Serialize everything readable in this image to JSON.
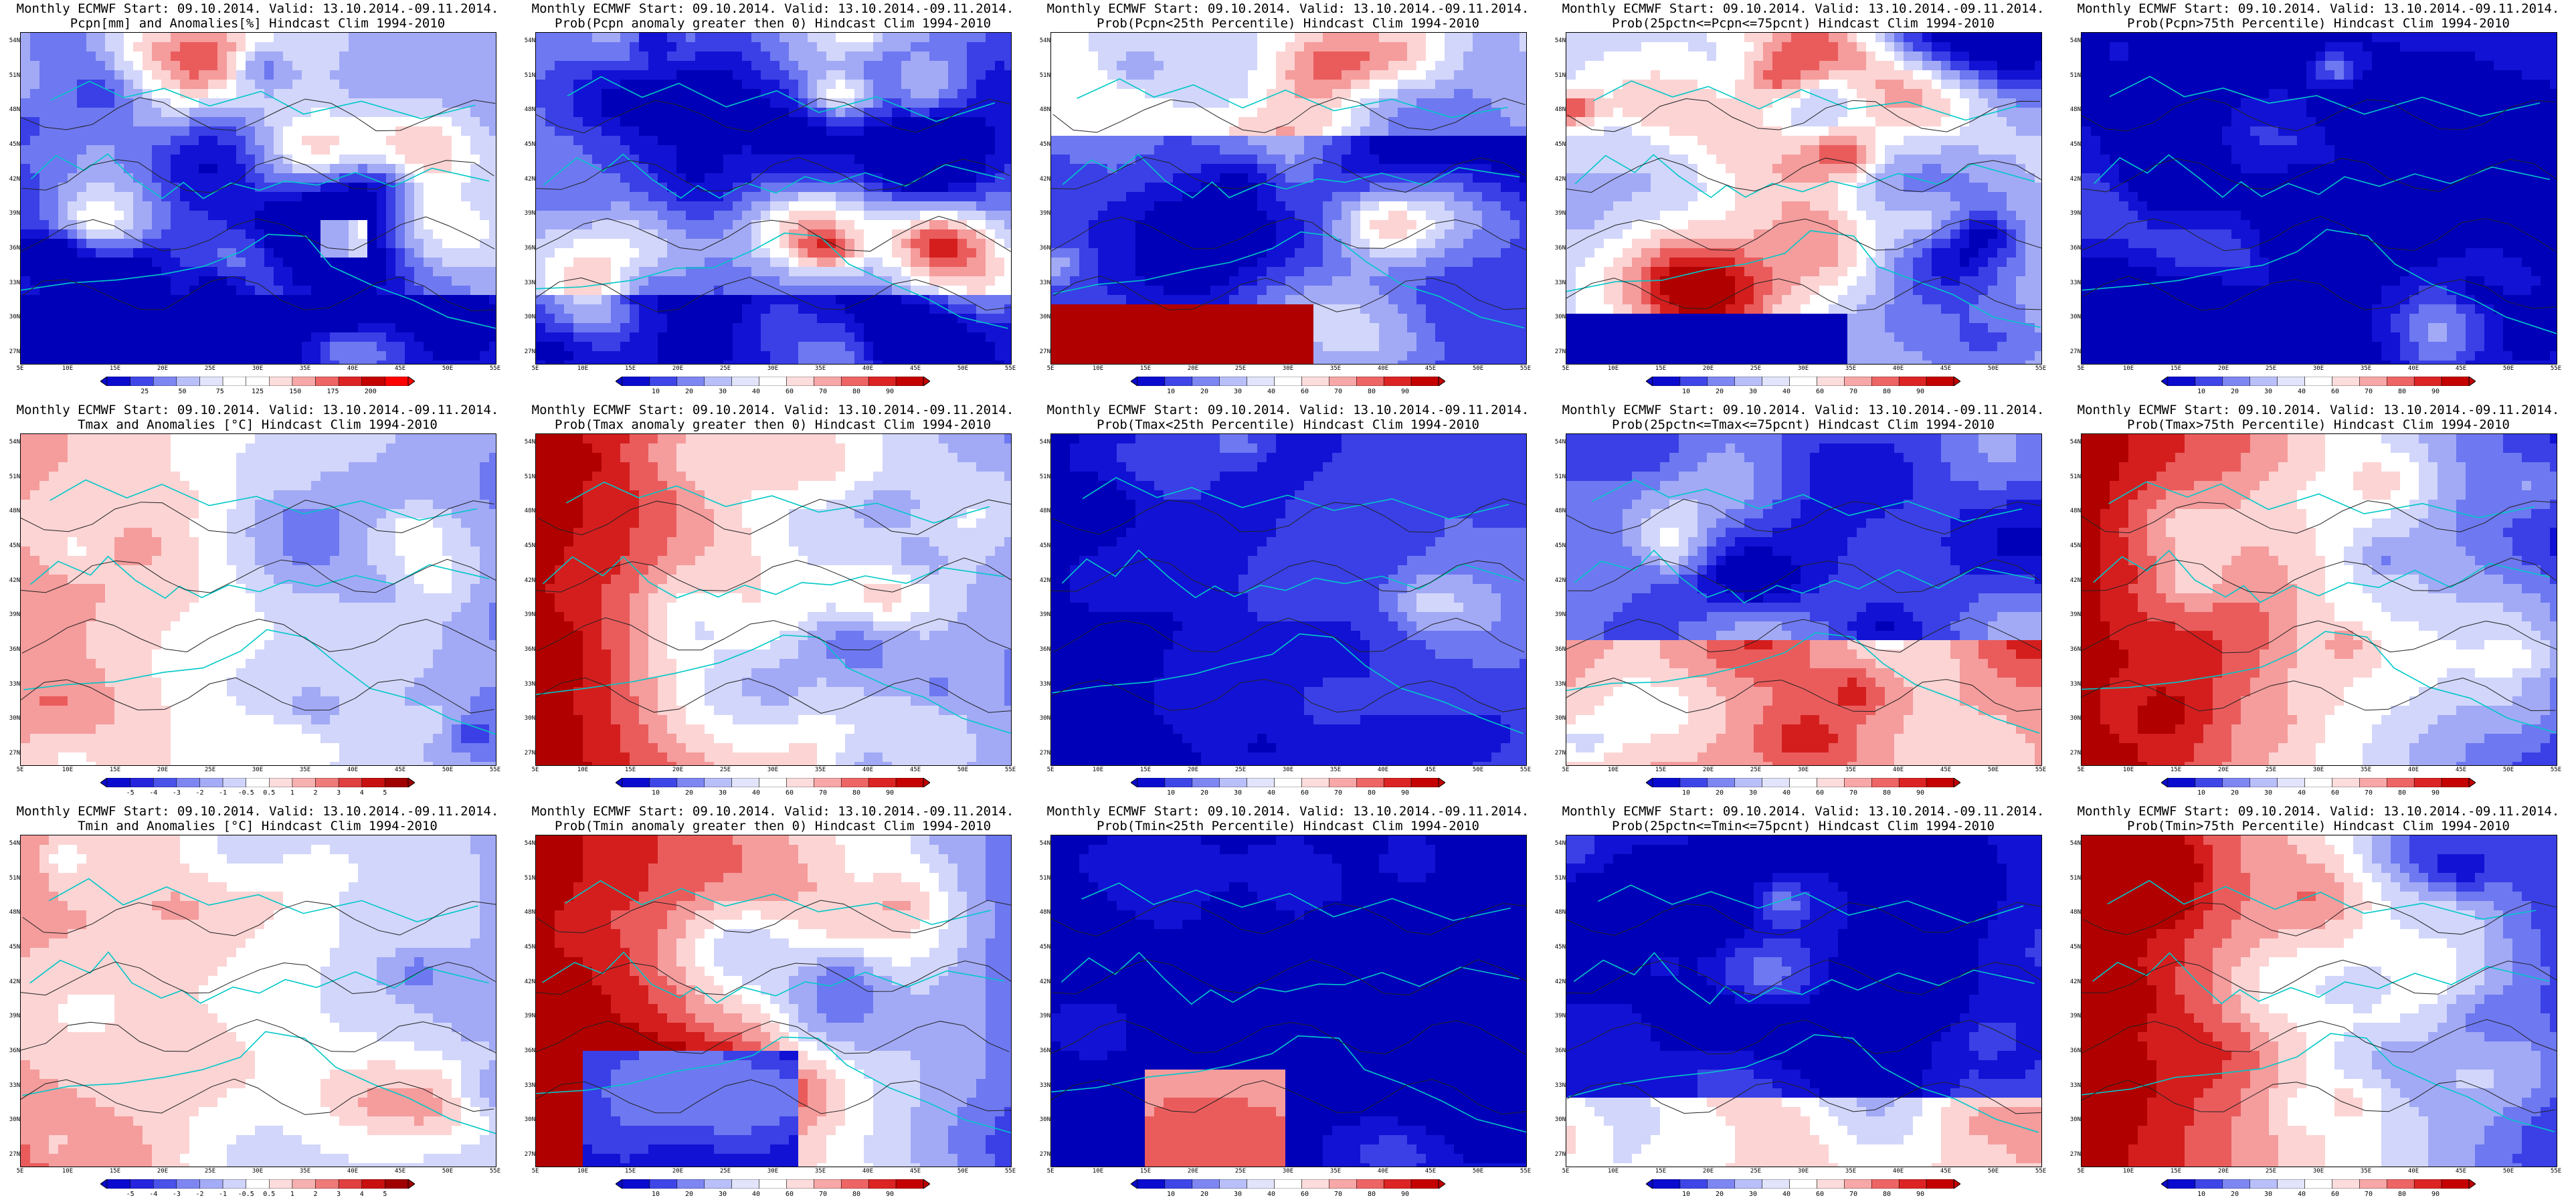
{
  "lat_labels": [
    "54N",
    "51N",
    "48N",
    "45N",
    "42N",
    "39N",
    "36N",
    "33N",
    "30N",
    "27N"
  ],
  "lon_labels": [
    "5E",
    "10E",
    "15E",
    "20E",
    "25E",
    "30E",
    "35E",
    "40E",
    "45E",
    "50E",
    "55E"
  ],
  "colorbars": {
    "pcpn_anom": {
      "labels": [
        "25",
        "50",
        "75",
        "125",
        "150",
        "175",
        "200"
      ],
      "colors": [
        "#0b0bcf",
        "#3f46e8",
        "#7e86f2",
        "#b9bff9",
        "#e2e4fc",
        "#ffffff",
        "#ffffff",
        "#fcdcdc",
        "#f7a7a7",
        "#ee6565",
        "#dd2424",
        "#c40000",
        "#ff0000"
      ]
    },
    "prob": {
      "labels": [
        "10",
        "20",
        "30",
        "40",
        "60",
        "70",
        "80",
        "90"
      ],
      "colors": [
        "#0b0bcf",
        "#3f46e8",
        "#7e86f2",
        "#b9bff9",
        "#e2e4fc",
        "#ffffff",
        "#fcdcdc",
        "#f7a7a7",
        "#ee6565",
        "#dd2424",
        "#c40000"
      ]
    },
    "temp_anom": {
      "labels": [
        "-5",
        "-4",
        "-3",
        "-2",
        "-1",
        "-0.5",
        "0.5",
        "1",
        "2",
        "3",
        "4",
        "5"
      ],
      "colors": [
        "#0b0bcf",
        "#2525de",
        "#4a52ea",
        "#7e86f2",
        "#a5acf7",
        "#d0d4fb",
        "#ffffff",
        "#fcdcdc",
        "#f7b0b0",
        "#ef7a7a",
        "#e04040",
        "#c81010",
        "#a00000"
      ]
    }
  },
  "panels": [
    {
      "title1": "Monthly ECMWF Start: 09.10.2014. Valid: 13.10.2014.-09.11.2014.",
      "title2": "Pcpn[mm] and Anomalies[%] Hindcast Clim 1994-2010",
      "cbar": "pcpn_anom",
      "pattern": "pcpn_anom"
    },
    {
      "title1": "Monthly ECMWF Start: 09.10.2014. Valid: 13.10.2014.-09.11.2014.",
      "title2": "Prob(Pcpn anomaly greater then 0) Hindcast Clim 1994-2010",
      "cbar": "prob",
      "pattern": "pcpn_pos"
    },
    {
      "title1": "Monthly ECMWF Start: 09.10.2014. Valid: 13.10.2014.-09.11.2014.",
      "title2": "Prob(Pcpn<25th Percentile) Hindcast Clim 1994-2010",
      "cbar": "prob",
      "pattern": "pcpn_low"
    },
    {
      "title1": "Monthly ECMWF Start: 09.10.2014. Valid: 13.10.2014.-09.11.2014.",
      "title2": "Prob(25pctn<=Pcpn<=75pcnt) Hindcast Clim 1994-2010",
      "cbar": "prob",
      "pattern": "pcpn_mid"
    },
    {
      "title1": "Monthly ECMWF Start: 09.10.2014. Valid: 13.10.2014.-09.11.2014.",
      "title2": "Prob(Pcpn>75th Percentile) Hindcast Clim 1994-2010",
      "cbar": "prob",
      "pattern": "pcpn_high"
    },
    {
      "title1": "Monthly ECMWF Start: 09.10.2014. Valid: 13.10.2014.-09.11.2014.",
      "title2": "Tmax and Anomalies [°C] Hindcast Clim 1994-2010",
      "cbar": "temp_anom",
      "pattern": "t_anom"
    },
    {
      "title1": "Monthly ECMWF Start: 09.10.2014. Valid: 13.10.2014.-09.11.2014.",
      "title2": "Prob(Tmax anomaly greater then 0) Hindcast Clim 1994-2010",
      "cbar": "prob",
      "pattern": "t_pos"
    },
    {
      "title1": "Monthly ECMWF Start: 09.10.2014. Valid: 13.10.2014.-09.11.2014.",
      "title2": "Prob(Tmax<25th Percentile) Hindcast Clim 1994-2010",
      "cbar": "prob",
      "pattern": "t_low"
    },
    {
      "title1": "Monthly ECMWF Start: 09.10.2014. Valid: 13.10.2014.-09.11.2014.",
      "title2": "Prob(25pctn<=Tmax<=75pcnt) Hindcast Clim 1994-2010",
      "cbar": "prob",
      "pattern": "t_mid"
    },
    {
      "title1": "Monthly ECMWF Start: 09.10.2014. Valid: 13.10.2014.-09.11.2014.",
      "title2": "Prob(Tmax>75th Percentile) Hindcast Clim 1994-2010",
      "cbar": "prob",
      "pattern": "t_high"
    },
    {
      "title1": "Monthly ECMWF Start: 09.10.2014. Valid: 13.10.2014.-09.11.2014.",
      "title2": "Tmin and Anomalies [°C] Hindcast Clim 1994-2010",
      "cbar": "temp_anom",
      "pattern": "tn_anom"
    },
    {
      "title1": "Monthly ECMWF Start: 09.10.2014. Valid: 13.10.2014.-09.11.2014.",
      "title2": "Prob(Tmin anomaly greater then 0) Hindcast Clim 1994-2010",
      "cbar": "prob",
      "pattern": "tn_pos"
    },
    {
      "title1": "Monthly ECMWF Start: 09.10.2014. Valid: 13.10.2014.-09.11.2014.",
      "title2": "Prob(Tmin<25th Percentile) Hindcast Clim 1994-2010",
      "cbar": "prob",
      "pattern": "tn_low"
    },
    {
      "title1": "Monthly ECMWF Start: 09.10.2014. Valid: 13.10.2014.-09.11.2014.",
      "title2": "Prob(25pctn<=Tmin<=75pcnt) Hindcast Clim 1994-2010",
      "cbar": "prob",
      "pattern": "tn_mid"
    },
    {
      "title1": "Monthly ECMWF Start: 09.10.2014. Valid: 13.10.2014.-09.11.2014.",
      "title2": "Prob(Tmin>75th Percentile) Hindcast Clim 1994-2010",
      "cbar": "prob",
      "pattern": "tn_high"
    }
  ]
}
